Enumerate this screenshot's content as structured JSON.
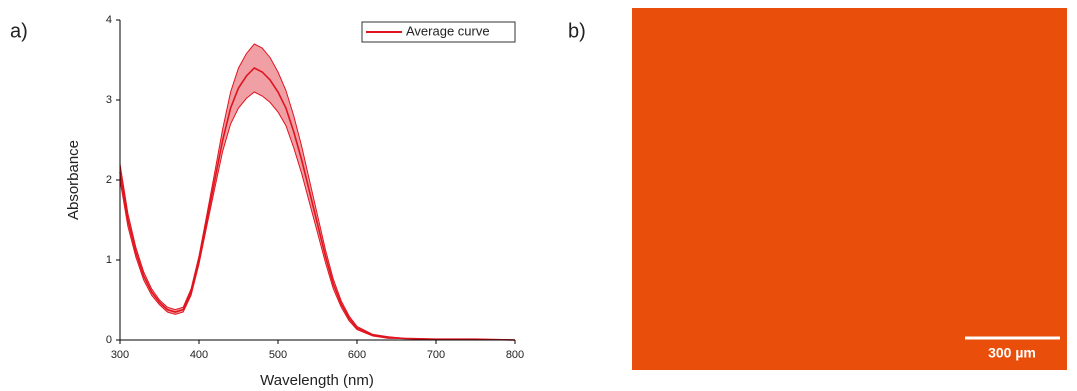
{
  "chart_data": {
    "type": "line",
    "xlabel": "Wavelength (nm)",
    "ylabel": "Absorbance",
    "x": [
      300,
      310,
      320,
      330,
      340,
      350,
      360,
      370,
      380,
      390,
      400,
      410,
      420,
      430,
      440,
      450,
      460,
      470,
      480,
      490,
      500,
      510,
      520,
      530,
      540,
      550,
      560,
      570,
      580,
      590,
      600,
      620,
      640,
      660,
      700,
      750,
      800
    ],
    "series": [
      {
        "name": "Average curve",
        "color": "#e0141e",
        "band_color": "#f0a0a4",
        "values": [
          2.1,
          1.5,
          1.1,
          0.8,
          0.6,
          0.47,
          0.38,
          0.35,
          0.38,
          0.6,
          1.0,
          1.5,
          2.0,
          2.5,
          2.9,
          3.15,
          3.3,
          3.4,
          3.35,
          3.25,
          3.1,
          2.9,
          2.6,
          2.25,
          1.85,
          1.45,
          1.05,
          0.7,
          0.45,
          0.27,
          0.15,
          0.06,
          0.03,
          0.02,
          0.01,
          0.01,
          0.0
        ],
        "lower": [
          2.0,
          1.42,
          1.04,
          0.75,
          0.56,
          0.44,
          0.35,
          0.32,
          0.35,
          0.56,
          0.95,
          1.43,
          1.9,
          2.36,
          2.7,
          2.9,
          3.02,
          3.1,
          3.05,
          2.97,
          2.85,
          2.68,
          2.4,
          2.08,
          1.71,
          1.34,
          0.97,
          0.64,
          0.41,
          0.24,
          0.13,
          0.05,
          0.02,
          0.02,
          0.01,
          0.01,
          0.0
        ],
        "upper": [
          2.2,
          1.58,
          1.16,
          0.85,
          0.64,
          0.5,
          0.41,
          0.38,
          0.41,
          0.64,
          1.05,
          1.57,
          2.1,
          2.64,
          3.1,
          3.4,
          3.58,
          3.7,
          3.65,
          3.53,
          3.35,
          3.12,
          2.8,
          2.42,
          1.99,
          1.56,
          1.13,
          0.76,
          0.49,
          0.3,
          0.17,
          0.07,
          0.04,
          0.02,
          0.01,
          0.01,
          0.0
        ]
      }
    ],
    "xlim": [
      300,
      800
    ],
    "xticks": [
      300,
      400,
      500,
      600,
      700,
      800
    ],
    "ylim": [
      0,
      4
    ],
    "yticks": [
      0,
      1,
      2,
      3,
      4
    ],
    "legend": "upper-right"
  },
  "panel_labels": [
    "a)",
    "b)"
  ],
  "image": {
    "color": "#e94f0b",
    "scale_bar": "300 µm"
  }
}
